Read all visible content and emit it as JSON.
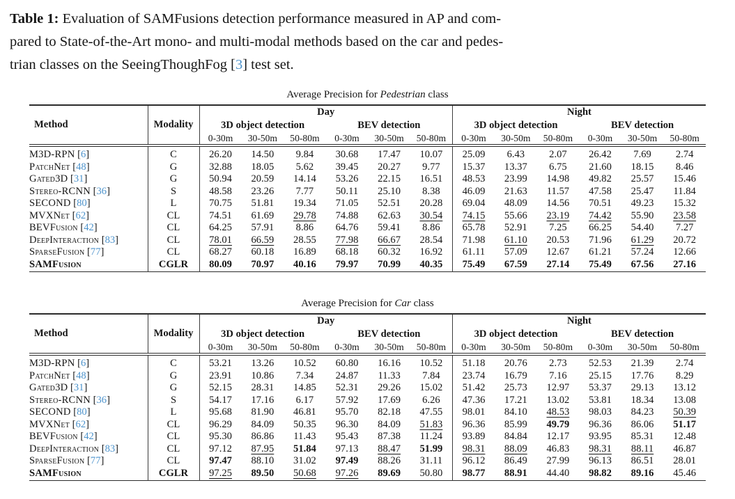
{
  "accent_colors": {
    "citation_link": "#4d93cc",
    "text": "#161616"
  },
  "caption": {
    "label": "Table 1:",
    "line1_rest": " Evaluation of SAMFusions detection performance measured in AP and com-",
    "line2": "pared to State-of-the-Art mono- and multi-modal methods based on the car and pedes-",
    "line3_pre": "trian classes on the SeeingThoughFog [",
    "line3_ref": "3",
    "line3_post": "] test set."
  },
  "column_headers": {
    "method": "Method",
    "modality": "Modality",
    "day": "Day",
    "night": "Night",
    "det3d": "3D object detection",
    "bev": "BEV detection",
    "ranges": [
      "0-30m",
      "30-50m",
      "50-80m"
    ]
  },
  "tables": [
    {
      "id": "pedestrian",
      "caption_pre": "Average Precision for ",
      "caption_class": "Pedestrian",
      "caption_post": " class",
      "rows": [
        {
          "method": "M3D-RPN",
          "ref": "6",
          "modality": "C",
          "emph": false,
          "values": [
            "26.20",
            "14.50",
            "9.84",
            "30.68",
            "17.47",
            "10.07",
            "25.09",
            "6.43",
            "2.07",
            "26.42",
            "7.69",
            "2.74"
          ],
          "styles": [
            "",
            "",
            "",
            "",
            "",
            "",
            "",
            "",
            "",
            "",
            "",
            ""
          ]
        },
        {
          "method": "PatchNet",
          "ref": "48",
          "modality": "G",
          "emph": false,
          "values": [
            "32.88",
            "18.05",
            "5.62",
            "39.45",
            "20.27",
            "9.77",
            "15.37",
            "13.37",
            "6.75",
            "21.60",
            "18.15",
            "8.46"
          ],
          "styles": [
            "",
            "",
            "",
            "",
            "",
            "",
            "",
            "",
            "",
            "",
            "",
            ""
          ]
        },
        {
          "method": "Gated3D",
          "ref": "31",
          "modality": "G",
          "emph": false,
          "values": [
            "50.94",
            "20.59",
            "14.14",
            "53.26",
            "22.15",
            "16.51",
            "48.53",
            "23.99",
            "14.98",
            "49.82",
            "25.57",
            "15.46"
          ],
          "styles": [
            "",
            "",
            "",
            "",
            "",
            "",
            "",
            "",
            "",
            "",
            "",
            ""
          ]
        },
        {
          "method": "Stereo-RCNN",
          "ref": "36",
          "modality": "S",
          "emph": false,
          "values": [
            "48.58",
            "23.26",
            "7.77",
            "50.11",
            "25.10",
            "8.38",
            "46.09",
            "21.63",
            "11.57",
            "47.58",
            "25.47",
            "11.84"
          ],
          "styles": [
            "",
            "",
            "",
            "",
            "",
            "",
            "",
            "",
            "",
            "",
            "",
            ""
          ]
        },
        {
          "method": "SECOND",
          "ref": "80",
          "modality": "L",
          "emph": false,
          "values": [
            "70.75",
            "51.81",
            "19.34",
            "71.05",
            "52.51",
            "20.28",
            "69.04",
            "48.09",
            "14.56",
            "70.51",
            "49.23",
            "15.32"
          ],
          "styles": [
            "",
            "",
            "",
            "",
            "",
            "",
            "",
            "",
            "",
            "",
            "",
            ""
          ]
        },
        {
          "method": "MVXNet",
          "ref": "62",
          "modality": "CL",
          "emph": false,
          "values": [
            "74.51",
            "61.69",
            "29.78",
            "74.88",
            "62.63",
            "30.54",
            "74.15",
            "55.66",
            "23.19",
            "74.42",
            "55.90",
            "23.58"
          ],
          "styles": [
            "",
            "",
            "u",
            "",
            "",
            "u",
            "u",
            "",
            "u",
            "u",
            "",
            "u"
          ]
        },
        {
          "method": "BEVFusion",
          "ref": "42",
          "modality": "CL",
          "emph": false,
          "values": [
            "64.25",
            "57.91",
            "8.86",
            "64.76",
            "59.41",
            "8.86",
            "65.78",
            "52.91",
            "7.25",
            "66.25",
            "54.40",
            "7.27"
          ],
          "styles": [
            "",
            "",
            "",
            "",
            "",
            "",
            "",
            "",
            "",
            "",
            "",
            ""
          ]
        },
        {
          "method": "DeepInteraction",
          "ref": "83",
          "modality": "CL",
          "emph": false,
          "values": [
            "78.01",
            "66.59",
            "28.55",
            "77.98",
            "66.67",
            "28.54",
            "71.98",
            "61.10",
            "20.53",
            "71.96",
            "61.29",
            "20.72"
          ],
          "styles": [
            "u",
            "u",
            "",
            "u",
            "u",
            "",
            "",
            "u",
            "",
            "",
            "u",
            ""
          ]
        },
        {
          "method": "SparseFusion",
          "ref": "77",
          "modality": "CL",
          "emph": false,
          "values": [
            "68.27",
            "60.18",
            "16.89",
            "68.18",
            "60.32",
            "16.92",
            "61.11",
            "57.09",
            "12.67",
            "61.21",
            "57.24",
            "12.66"
          ],
          "styles": [
            "",
            "",
            "",
            "",
            "",
            "",
            "",
            "",
            "",
            "",
            "",
            ""
          ]
        },
        {
          "method": "SAMFusion",
          "ref": "",
          "modality": "CGLR",
          "emph": true,
          "values": [
            "80.09",
            "70.97",
            "40.16",
            "79.97",
            "70.99",
            "40.35",
            "75.49",
            "67.59",
            "27.14",
            "75.49",
            "67.56",
            "27.16"
          ],
          "styles": [
            "b",
            "b",
            "b",
            "b",
            "b",
            "b",
            "b",
            "b",
            "b",
            "b",
            "b",
            "b"
          ]
        }
      ]
    },
    {
      "id": "car",
      "caption_pre": "Average Precision for ",
      "caption_class": "Car",
      "caption_post": " class",
      "rows": [
        {
          "method": "M3D-RPN",
          "ref": "6",
          "modality": "C",
          "emph": false,
          "values": [
            "53.21",
            "13.26",
            "10.52",
            "60.80",
            "16.16",
            "10.52",
            "51.18",
            "20.76",
            "2.73",
            "52.53",
            "21.39",
            "2.74"
          ],
          "styles": [
            "",
            "",
            "",
            "",
            "",
            "",
            "",
            "",
            "",
            "",
            "",
            ""
          ]
        },
        {
          "method": "PatchNet",
          "ref": "48",
          "modality": "G",
          "emph": false,
          "values": [
            "23.91",
            "10.86",
            "7.34",
            "24.87",
            "11.33",
            "7.84",
            "23.74",
            "16.79",
            "7.16",
            "25.15",
            "17.76",
            "8.29"
          ],
          "styles": [
            "",
            "",
            "",
            "",
            "",
            "",
            "",
            "",
            "",
            "",
            "",
            ""
          ]
        },
        {
          "method": "Gated3D",
          "ref": "31",
          "modality": "G",
          "emph": false,
          "values": [
            "52.15",
            "28.31",
            "14.85",
            "52.31",
            "29.26",
            "15.02",
            "51.42",
            "25.73",
            "12.97",
            "53.37",
            "29.13",
            "13.12"
          ],
          "styles": [
            "",
            "",
            "",
            "",
            "",
            "",
            "",
            "",
            "",
            "",
            "",
            ""
          ]
        },
        {
          "method": "Stereo-RCNN",
          "ref": "36",
          "modality": "S",
          "emph": false,
          "values": [
            "54.17",
            "17.16",
            "6.17",
            "57.92",
            "17.69",
            "6.26",
            "47.36",
            "17.21",
            "13.02",
            "53.81",
            "18.34",
            "13.08"
          ],
          "styles": [
            "",
            "",
            "",
            "",
            "",
            "",
            "",
            "",
            "",
            "",
            "",
            ""
          ]
        },
        {
          "method": "SECOND",
          "ref": "80",
          "modality": "L",
          "emph": false,
          "values": [
            "95.68",
            "81.90",
            "46.81",
            "95.70",
            "82.18",
            "47.55",
            "98.01",
            "84.10",
            "48.53",
            "98.03",
            "84.23",
            "50.39"
          ],
          "styles": [
            "",
            "",
            "",
            "",
            "",
            "",
            "",
            "",
            "u",
            "",
            "",
            "u"
          ]
        },
        {
          "method": "MVXNet",
          "ref": "62",
          "modality": "CL",
          "emph": false,
          "values": [
            "96.29",
            "84.09",
            "50.35",
            "96.30",
            "84.09",
            "51.83",
            "96.36",
            "85.99",
            "49.79",
            "96.36",
            "86.06",
            "51.17"
          ],
          "styles": [
            "",
            "",
            "",
            "",
            "",
            "u",
            "",
            "",
            "b",
            "",
            "",
            "b"
          ]
        },
        {
          "method": "BEVFusion",
          "ref": "42",
          "modality": "CL",
          "emph": false,
          "values": [
            "95.30",
            "86.86",
            "11.43",
            "95.43",
            "87.38",
            "11.24",
            "93.89",
            "84.84",
            "12.17",
            "93.95",
            "85.31",
            "12.48"
          ],
          "styles": [
            "",
            "",
            "",
            "",
            "",
            "",
            "",
            "",
            "",
            "",
            "",
            ""
          ]
        },
        {
          "method": "DeepInteraction",
          "ref": "83",
          "modality": "CL",
          "emph": false,
          "values": [
            "97.12",
            "87.95",
            "51.84",
            "97.13",
            "88.47",
            "51.99",
            "98.31",
            "88.09",
            "46.83",
            "98.31",
            "88.11",
            "46.87"
          ],
          "styles": [
            "",
            "u",
            "b",
            "",
            "u",
            "b",
            "u",
            "u",
            "",
            "u",
            "u",
            ""
          ]
        },
        {
          "method": "SparseFusion",
          "ref": "77",
          "modality": "CL",
          "emph": false,
          "values": [
            "97.47",
            "88.10",
            "31.02",
            "97.49",
            "88.26",
            "31.11",
            "96.12",
            "86.49",
            "27.99",
            "96.13",
            "86.51",
            "28.01"
          ],
          "styles": [
            "b",
            "",
            "",
            "b",
            "",
            "",
            "",
            "",
            "",
            "",
            "",
            ""
          ]
        },
        {
          "method": "SAMFusion",
          "ref": "",
          "modality": "CGLR",
          "emph": true,
          "values": [
            "97.25",
            "89.50",
            "50.68",
            "97.26",
            "89.69",
            "50.80",
            "98.77",
            "88.91",
            "44.40",
            "98.82",
            "89.16",
            "45.46"
          ],
          "styles": [
            "u",
            "b",
            "u",
            "u",
            "b",
            "",
            "b",
            "b",
            "",
            "b",
            "b",
            ""
          ]
        }
      ]
    }
  ]
}
